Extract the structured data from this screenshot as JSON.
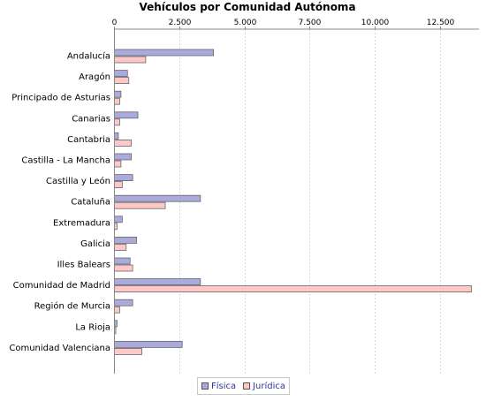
{
  "chart_data": {
    "type": "bar",
    "orientation": "horizontal",
    "title": "Vehículos por Comunidad Autónoma",
    "xlabel": "",
    "ylabel": "",
    "xlim": [
      0,
      14000
    ],
    "x_ticks": [
      0,
      2500,
      5000,
      7500,
      10000,
      12500
    ],
    "x_tick_labels": [
      "0",
      "2.500",
      "5.000",
      "7.500",
      "10.000",
      "12.500"
    ],
    "axis_position": "top",
    "grid": true,
    "legend_position": "bottom",
    "categories": [
      "Andalucía",
      "Aragón",
      "Principado de Asturias",
      "Canarias",
      "Cantabria",
      "Castilla - La Mancha",
      "Castilla y León",
      "Cataluña",
      "Extremadura",
      "Galicia",
      "Illes Balears",
      "Comunidad de Madrid",
      "Región de Murcia",
      "La Rioja",
      "Comunidad Valenciana"
    ],
    "series": [
      {
        "name": "Física",
        "color": "#aaaadd",
        "values": [
          3800,
          500,
          250,
          900,
          150,
          650,
          700,
          3300,
          300,
          850,
          600,
          3300,
          700,
          100,
          2600
        ]
      },
      {
        "name": "Jurídica",
        "color": "#ffc8c8",
        "values": [
          1200,
          550,
          200,
          200,
          650,
          250,
          300,
          1950,
          100,
          450,
          700,
          13700,
          200,
          50,
          1050
        ]
      }
    ]
  }
}
